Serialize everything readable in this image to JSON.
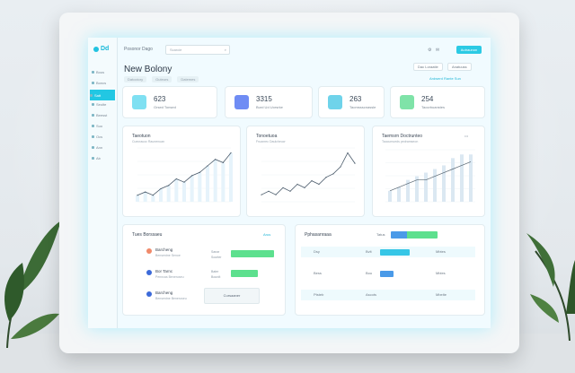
{
  "colors": {
    "accent": "#22c7e3",
    "green": "#5de08e",
    "blue": "#6f8cf4"
  },
  "app": {
    "name": "Posonor Dago",
    "logo": "Dd",
    "title": "New Bolony"
  },
  "search": {
    "placeholder": "Scarcie"
  },
  "header": {
    "icon1": "⚙",
    "icon2": "✉",
    "button": "Autraunon"
  },
  "tabs": [
    "Datoctory",
    "Guteurs",
    "Datemes"
  ],
  "filters": {
    "first": "Dac Loraatle",
    "second": "Anatuuss"
  },
  "filter_link": "Ardwerd Rante Sun",
  "sidebar": {
    "items": [
      {
        "label": "Bous",
        "icon": "home-icon"
      },
      {
        "label": "Boncs",
        "icon": "grid-icon"
      },
      {
        "label": "Satt",
        "icon": "chart-icon"
      },
      {
        "label": "Seolte",
        "icon": "settings-icon"
      },
      {
        "label": "Beesst",
        "icon": "doc-icon"
      },
      {
        "label": "Suo",
        "icon": "user-icon"
      },
      {
        "label": "Ocs",
        "icon": "list-icon"
      },
      {
        "label": "Ann",
        "icon": "folder-icon"
      },
      {
        "label": "Ab",
        "icon": "tag-icon"
      }
    ]
  },
  "kpis": [
    {
      "value": "623",
      "label": "Grsed Tonsed",
      "icon": "clipboard-icon",
      "color": "#7fe0f2"
    },
    {
      "value": "3315",
      "label": "Burd Ud Uorsrke",
      "icon": "chart-icon",
      "color": "#6f8cf4"
    },
    {
      "value": "263",
      "label": "Taomssscnassle",
      "icon": "card-icon",
      "color": "#6fd3ea"
    },
    {
      "value": "254",
      "label": "Taocrbuanstes",
      "icon": "doc-icon",
      "color": "#7fe3a8"
    }
  ],
  "charts": {
    "line1": {
      "title": "Taeotuon",
      "subtitle": "Cuecrauoc Raunenuan"
    },
    "line2": {
      "title": "Tonoetuoa",
      "subtitle": "Fruanrec Daulcheucr"
    },
    "bar1": {
      "title": "Taemsrn Doctrunteo",
      "subtitle": "Taocumueds pedramseon",
      "more": "•••"
    }
  },
  "chart_data": [
    {
      "type": "area",
      "y": [
        2,
        3,
        2,
        4,
        5,
        7,
        6,
        8,
        9,
        11,
        13,
        12,
        15
      ]
    },
    {
      "type": "line",
      "y": [
        2,
        3,
        2,
        4,
        3,
        5,
        4,
        6,
        5,
        7,
        8,
        10,
        14,
        11
      ]
    },
    {
      "type": "bar",
      "values": [
        3,
        4,
        6,
        7,
        8,
        9,
        10,
        12,
        13,
        13
      ],
      "line": [
        3,
        4,
        5,
        6,
        6,
        7,
        8,
        9,
        10,
        11
      ]
    }
  ],
  "list_panel": {
    "title": "Tues Borssaeu",
    "more": "Arus",
    "rows": [
      {
        "name": "Barcheng",
        "sub": "Bensentne Senoe",
        "color": "#f08a6a"
      },
      {
        "name": "Bor Tarnc",
        "sub": "Penncas Beneruseu",
        "color": "#3c6ad9"
      },
      {
        "name": "Barcheng",
        "sub": "Bensentne Beneruseu",
        "color": "#3c6ad9"
      }
    ],
    "bars": [
      {
        "label": "Sanar",
        "sub": "Soorter",
        "pct": 0.8
      },
      {
        "label": "Bater",
        "sub": "Bourdt",
        "pct": 0.5
      }
    ],
    "button": "Cursaaner"
  },
  "table_panel": {
    "title": "Pphasanraaa",
    "legend": "Tatus",
    "rows": [
      {
        "c1": "Dsy",
        "c2": "Bvlt",
        "c3": "Mbtes",
        "bar": 0.55,
        "color": "#36c6e6"
      },
      {
        "c1": "Bess",
        "c2": "Bou",
        "c3": "Mbles",
        "bar": 0.25,
        "color": "#4a9ae8"
      },
      {
        "c1": "Ptsteb",
        "c2": "Ascots",
        "c3": "Mbelte",
        "bar": 0,
        "color": "#36c6e6"
      }
    ]
  }
}
